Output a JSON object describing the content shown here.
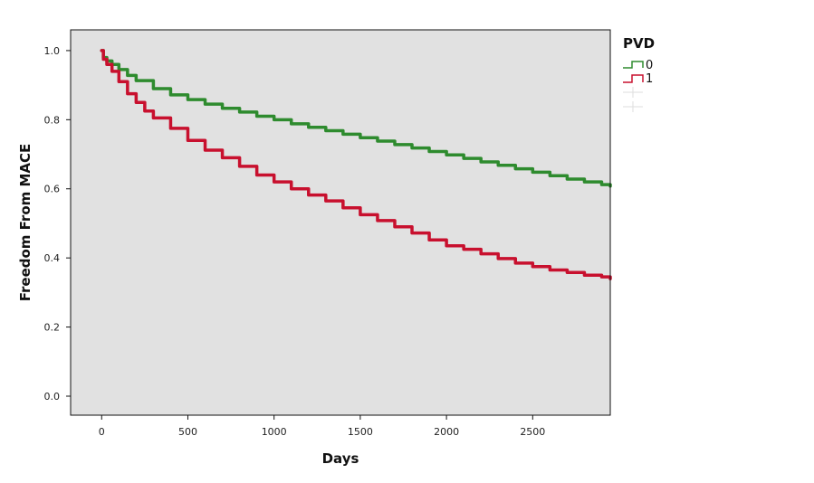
{
  "chart_data": {
    "type": "line",
    "title": "",
    "xlabel": "Days",
    "ylabel": "Freedom From MACE",
    "xlim": [
      -180,
      2950
    ],
    "ylim": [
      -0.055,
      1.06
    ],
    "x_ticks": [
      0,
      500,
      1000,
      1500,
      2000,
      2500
    ],
    "x_tick_labels": [
      "0",
      "500",
      "1000",
      "1500",
      "2000",
      "2500"
    ],
    "y_ticks": [
      0.0,
      0.2,
      0.4,
      0.6,
      0.8,
      1.0
    ],
    "y_tick_labels": [
      "0.0",
      "0.2",
      "0.4",
      "0.6",
      "0.8",
      "1.0"
    ],
    "grid": false,
    "plot_background": "#e1e1e1",
    "legend": {
      "title": "PVD",
      "placement": "top-right, outside plot",
      "entries": [
        "0",
        "1"
      ]
    },
    "series": [
      {
        "name": "0",
        "color": "#2e8b2e",
        "step": true,
        "x": [
          0,
          10,
          30,
          60,
          100,
          150,
          200,
          300,
          400,
          500,
          600,
          700,
          800,
          900,
          1000,
          1100,
          1200,
          1300,
          1400,
          1500,
          1600,
          1700,
          1800,
          1900,
          2000,
          2100,
          2200,
          2300,
          2400,
          2500,
          2600,
          2700,
          2800,
          2900,
          2950
        ],
        "y": [
          1.0,
          0.98,
          0.97,
          0.96,
          0.945,
          0.928,
          0.913,
          0.89,
          0.872,
          0.858,
          0.845,
          0.833,
          0.822,
          0.81,
          0.8,
          0.788,
          0.778,
          0.768,
          0.758,
          0.748,
          0.738,
          0.728,
          0.718,
          0.708,
          0.698,
          0.688,
          0.678,
          0.668,
          0.658,
          0.648,
          0.638,
          0.628,
          0.62,
          0.612,
          0.608
        ]
      },
      {
        "name": "1",
        "color": "#c8102e",
        "step": true,
        "x": [
          0,
          10,
          30,
          60,
          100,
          150,
          200,
          250,
          300,
          400,
          500,
          600,
          700,
          800,
          900,
          1000,
          1100,
          1200,
          1300,
          1400,
          1500,
          1600,
          1700,
          1800,
          1900,
          2000,
          2100,
          2200,
          2300,
          2400,
          2500,
          2600,
          2700,
          2800,
          2900,
          2950
        ],
        "y": [
          1.0,
          0.975,
          0.96,
          0.94,
          0.91,
          0.875,
          0.85,
          0.825,
          0.805,
          0.775,
          0.74,
          0.712,
          0.69,
          0.665,
          0.64,
          0.62,
          0.6,
          0.582,
          0.565,
          0.545,
          0.525,
          0.508,
          0.49,
          0.472,
          0.452,
          0.435,
          0.425,
          0.412,
          0.398,
          0.385,
          0.375,
          0.365,
          0.358,
          0.35,
          0.345,
          0.34
        ]
      }
    ]
  }
}
